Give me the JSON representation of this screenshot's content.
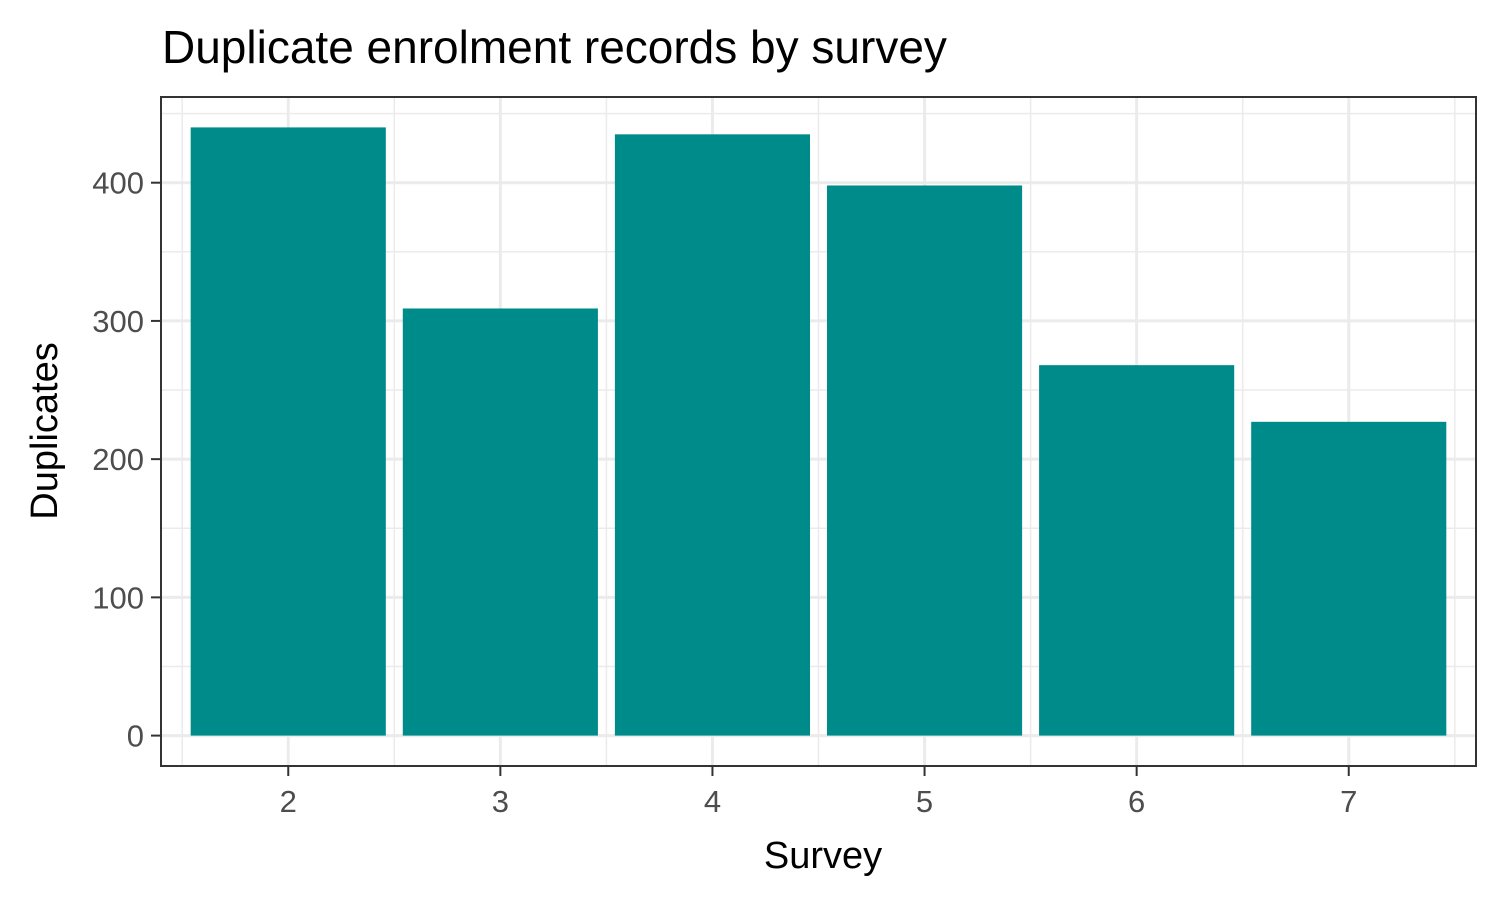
{
  "chart_data": {
    "type": "bar",
    "title": "Duplicate enrolment records by survey",
    "xlabel": "Survey",
    "ylabel": "Duplicates",
    "categories": [
      "2",
      "3",
      "4",
      "5",
      "6",
      "7"
    ],
    "values": [
      440,
      309,
      435,
      398,
      268,
      227
    ],
    "ylim": [
      -22,
      462
    ],
    "yticks": [
      0,
      100,
      200,
      300,
      400
    ],
    "ytick_labels": [
      "0",
      "100",
      "200",
      "300",
      "400"
    ],
    "grid": true,
    "legend": "none",
    "colors": {
      "bar": "#008b8b",
      "panel_border": "#333333",
      "grid": "#ebebeb"
    }
  }
}
